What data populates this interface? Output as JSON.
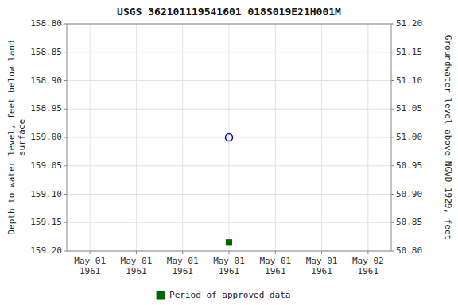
{
  "chart_data": {
    "type": "scatter",
    "title": "USGS 362101119541601 018S019E21H001M",
    "y_label": "Depth to water level, feet below land\nsurface",
    "y2_label": "Groundwater level above NGVD 1929, feet",
    "categories": [
      "May 01\n1961",
      "May 01\n1961",
      "May 01\n1961",
      "May 01\n1961",
      "May 01\n1961",
      "May 01\n1961",
      "May 02\n1961"
    ],
    "series": [
      {
        "color": "#0000cc",
        "marker": "open-circle",
        "values": [
          null,
          null,
          null,
          159.0,
          null,
          null,
          null
        ]
      },
      {
        "name": "Period of approved data",
        "color": "#006600",
        "marker": "square",
        "values": [
          null,
          null,
          null,
          159.185,
          null,
          null,
          null
        ]
      }
    ],
    "ylim": [
      159.2,
      158.8
    ],
    "yticks": [
      {
        "value": 158.8,
        "label": "158.80"
      },
      158.85,
      {
        "value": 158.9,
        "label": "158.90"
      },
      158.95,
      {
        "value": 159.0,
        "label": "159.00"
      },
      159.05,
      {
        "value": 159.1,
        "label": "159.10"
      },
      159.15,
      {
        "value": 159.2,
        "label": "159.20"
      }
    ],
    "y2lim": [
      50.8,
      51.2
    ],
    "y2ticks": [
      {
        "value": 51.2,
        "label": "51.20"
      },
      51.15,
      {
        "value": 51.1,
        "label": "51.10"
      },
      51.05,
      {
        "value": 51.0,
        "label": "51.00"
      },
      50.95,
      {
        "value": 50.9,
        "label": "50.90"
      },
      50.85,
      {
        "value": 50.8,
        "label": "50.80"
      }
    ],
    "grid": true,
    "legend": "bottom"
  }
}
